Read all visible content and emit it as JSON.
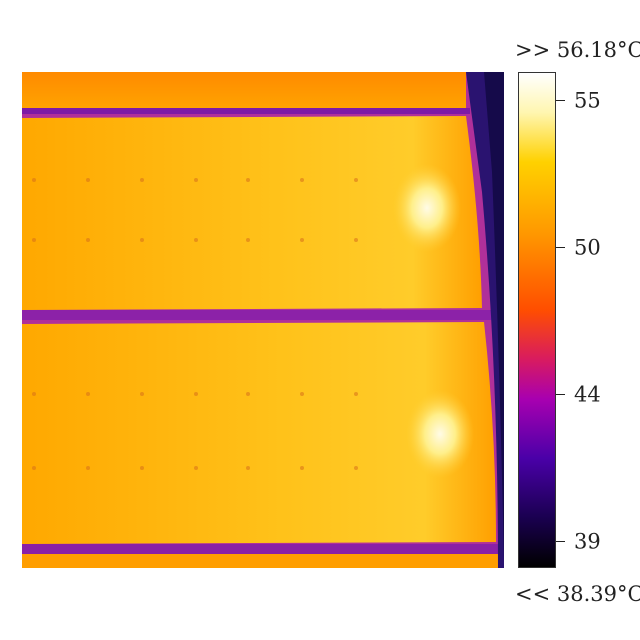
{
  "scale": {
    "max_label": ">> 56.18°C",
    "min_label": "<< 38.39°C",
    "ticks": [
      "55",
      "50",
      "44",
      "39"
    ],
    "palette": [
      "#ffffff",
      "#fff6b0",
      "#ffd100",
      "#ff9a00",
      "#ff4e00",
      "#d81b60",
      "#a800b0",
      "#4a00a8",
      "#1a0050",
      "#000000"
    ]
  }
}
